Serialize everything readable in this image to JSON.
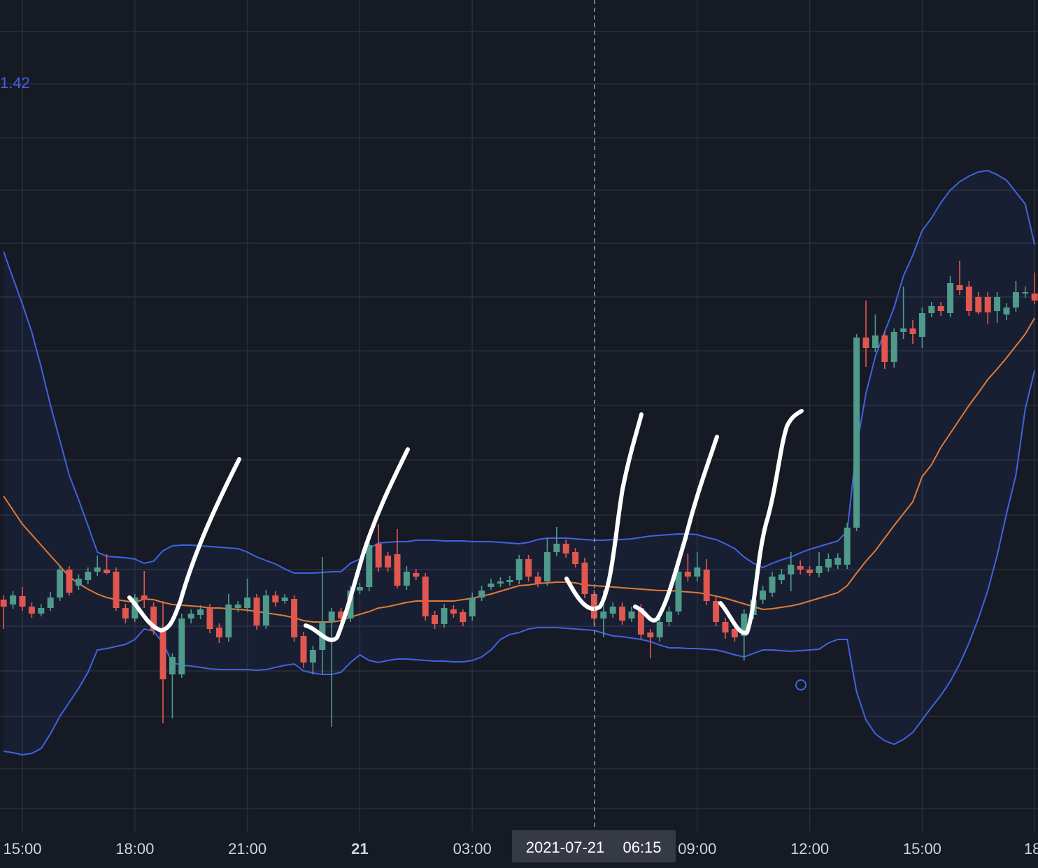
{
  "chart_data": {
    "type": "candlestick",
    "legend_value": "1.42",
    "crosshair": {
      "date": "2021-07-21",
      "time": "06:15"
    },
    "categories": [
      null,
      null,
      "15:00",
      null,
      null,
      null,
      null,
      null,
      null,
      null,
      null,
      null,
      null,
      null,
      "18:00",
      null,
      null,
      null,
      null,
      null,
      null,
      null,
      null,
      null,
      null,
      null,
      "21:00",
      null,
      null,
      null,
      null,
      null,
      null,
      null,
      null,
      null,
      null,
      null,
      "21",
      null,
      null,
      null,
      null,
      null,
      null,
      null,
      null,
      null,
      null,
      null,
      "03:00",
      null,
      null,
      null,
      null,
      null,
      null,
      null,
      null,
      null,
      null,
      null,
      null,
      null,
      null,
      null,
      null,
      null,
      null,
      null,
      null,
      null,
      null,
      null,
      "09:00",
      null,
      null,
      null,
      null,
      null,
      null,
      null,
      null,
      null,
      null,
      null,
      "12:00",
      null,
      null,
      null,
      null,
      null,
      null,
      null,
      null,
      null,
      null,
      null,
      "15:00",
      null,
      null,
      null,
      null,
      null,
      null,
      null,
      null,
      null,
      null,
      null,
      "18:"
    ],
    "ohlc": [
      [
        332,
        338,
        290,
        322
      ],
      [
        325,
        344,
        319,
        338
      ],
      [
        337,
        350,
        316,
        322
      ],
      [
        322,
        328,
        306,
        312
      ],
      [
        312,
        326,
        308,
        320
      ],
      [
        320,
        343,
        316,
        335
      ],
      [
        335,
        382,
        330,
        375
      ],
      [
        375,
        380,
        338,
        342
      ],
      [
        352,
        368,
        346,
        362
      ],
      [
        360,
        378,
        354,
        372
      ],
      [
        372,
        395,
        366,
        378
      ],
      [
        375,
        397,
        368,
        370
      ],
      [
        372,
        378,
        316,
        320
      ],
      [
        320,
        326,
        298,
        305
      ],
      [
        305,
        340,
        300,
        335
      ],
      [
        338,
        373,
        320,
        332
      ],
      [
        322,
        328,
        282,
        288
      ],
      [
        288,
        330,
        155,
        218
      ],
      [
        225,
        255,
        162,
        250
      ],
      [
        225,
        312,
        220,
        305
      ],
      [
        305,
        318,
        298,
        312
      ],
      [
        310,
        324,
        304,
        318
      ],
      [
        320,
        326,
        284,
        290
      ],
      [
        292,
        298,
        270,
        278
      ],
      [
        278,
        340,
        272,
        325
      ],
      [
        320,
        330,
        314,
        325
      ],
      [
        320,
        362,
        314,
        335
      ],
      [
        335,
        340,
        289,
        295
      ],
      [
        295,
        346,
        290,
        338
      ],
      [
        338,
        344,
        322,
        328
      ],
      [
        330,
        340,
        326,
        335
      ],
      [
        333,
        338,
        272,
        278
      ],
      [
        280,
        286,
        234,
        242
      ],
      [
        242,
        266,
        225,
        260
      ],
      [
        260,
        393,
        225,
        300
      ],
      [
        300,
        320,
        150,
        315
      ],
      [
        315,
        320,
        298,
        305
      ],
      [
        305,
        352,
        300,
        345
      ],
      [
        345,
        356,
        340,
        350
      ],
      [
        350,
        418,
        344,
        410
      ],
      [
        412,
        440,
        372,
        378
      ],
      [
        395,
        400,
        372,
        378
      ],
      [
        397,
        433,
        348,
        352
      ],
      [
        352,
        380,
        346,
        372
      ],
      [
        370,
        376,
        360,
        365
      ],
      [
        365,
        370,
        302,
        308
      ],
      [
        310,
        316,
        290,
        297
      ],
      [
        297,
        326,
        292,
        320
      ],
      [
        318,
        324,
        306,
        312
      ],
      [
        314,
        318,
        294,
        300
      ],
      [
        308,
        342,
        302,
        335
      ],
      [
        335,
        352,
        330,
        345
      ],
      [
        350,
        362,
        346,
        355
      ],
      [
        355,
        364,
        350,
        358
      ],
      [
        357,
        366,
        352,
        360
      ],
      [
        360,
        396,
        354,
        390
      ],
      [
        390,
        396,
        358,
        365
      ],
      [
        365,
        372,
        350,
        355
      ],
      [
        358,
        420,
        352,
        400
      ],
      [
        400,
        436,
        394,
        412
      ],
      [
        412,
        418,
        392,
        398
      ],
      [
        400,
        406,
        378,
        383
      ],
      [
        385,
        392,
        334,
        340
      ],
      [
        340,
        346,
        296,
        305
      ],
      [
        305,
        345,
        278,
        315
      ],
      [
        312,
        328,
        306,
        322
      ],
      [
        322,
        328,
        296,
        302
      ],
      [
        305,
        322,
        300,
        315
      ],
      [
        320,
        326,
        276,
        282
      ],
      [
        285,
        290,
        248,
        278
      ],
      [
        278,
        306,
        272,
        300
      ],
      [
        300,
        322,
        294,
        315
      ],
      [
        315,
        378,
        310,
        372
      ],
      [
        372,
        398,
        358,
        365
      ],
      [
        365,
        400,
        358,
        378
      ],
      [
        375,
        390,
        324,
        330
      ],
      [
        330,
        336,
        294,
        300
      ],
      [
        300,
        306,
        276,
        285
      ],
      [
        290,
        296,
        272,
        278
      ],
      [
        280,
        318,
        245,
        312
      ],
      [
        310,
        340,
        304,
        332
      ],
      [
        332,
        352,
        326,
        345
      ],
      [
        342,
        372,
        336,
        365
      ],
      [
        360,
        376,
        354,
        368
      ],
      [
        368,
        400,
        344,
        382
      ],
      [
        380,
        388,
        368,
        375
      ],
      [
        375,
        380,
        366,
        370
      ],
      [
        370,
        400,
        364,
        380
      ],
      [
        378,
        398,
        372,
        390
      ],
      [
        382,
        398,
        376,
        392
      ],
      [
        382,
        442,
        376,
        435
      ],
      [
        435,
        712,
        430,
        707
      ],
      [
        707,
        760,
        665,
        692
      ],
      [
        692,
        740,
        686,
        710
      ],
      [
        710,
        716,
        662,
        672
      ],
      [
        672,
        720,
        664,
        715
      ],
      [
        715,
        780,
        705,
        720
      ],
      [
        720,
        732,
        698,
        712
      ],
      [
        708,
        750,
        692,
        742
      ],
      [
        742,
        758,
        736,
        752
      ],
      [
        752,
        758,
        738,
        745
      ],
      [
        742,
        795,
        736,
        785
      ],
      [
        782,
        817,
        768,
        775
      ],
      [
        780,
        788,
        738,
        745
      ],
      [
        765,
        772,
        740,
        743
      ],
      [
        765,
        772,
        726,
        743
      ],
      [
        745,
        772,
        728,
        765
      ],
      [
        740,
        756,
        732,
        750
      ],
      [
        750,
        788,
        744,
        772
      ],
      [
        770,
        780,
        764,
        772
      ],
      [
        770,
        800,
        755,
        760
      ]
    ],
    "up_color": "#4f9a8a",
    "down_color": "#e0574f",
    "series": [
      {
        "color": "#3f63e0",
        "values": [
          830,
          792,
          755,
          715,
          665,
          610,
          560,
          510,
          475,
          438,
          400,
          394,
          393,
          392,
          390,
          384,
          387,
          402,
          409,
          410,
          410,
          409,
          408,
          407,
          406,
          405,
          400,
          393,
          388,
          383,
          376,
          370,
          370,
          370,
          371,
          372,
          372,
          384,
          390,
          405,
          413,
          414,
          415,
          415,
          417,
          417,
          417,
          416,
          416,
          416,
          415,
          415,
          415,
          414,
          413,
          412,
          414,
          418,
          420,
          420,
          420,
          419,
          418,
          417,
          417,
          418,
          418,
          419,
          421,
          423,
          424,
          425,
          426,
          426,
          425,
          421,
          418,
          412,
          405,
          393,
          384,
          378,
          384,
          389,
          393,
          399,
          404,
          408,
          412,
          416,
          430,
          550,
          627,
          680,
          715,
          750,
          795,
          825,
          860,
          878,
          900,
          918,
          930,
          938,
          944,
          946,
          940,
          932,
          915,
          898,
          840
        ]
      },
      {
        "color": "#e07b35",
        "values": [
          480,
          460,
          440,
          425,
          410,
          395,
          380,
          365,
          355,
          347,
          340,
          335,
          332,
          330,
          328,
          333,
          332,
          328,
          325,
          324,
          323,
          322,
          320,
          320,
          319,
          318,
          317,
          315,
          313,
          311,
          309,
          306,
          302,
          300,
          300,
          300,
          302,
          307,
          311,
          315,
          320,
          322,
          325,
          328,
          330,
          330,
          330,
          330,
          330,
          332,
          334,
          337,
          340,
          344,
          348,
          352,
          353,
          355,
          356,
          357,
          357,
          356,
          353,
          352,
          351,
          350,
          349,
          348,
          347,
          346,
          345,
          345,
          344,
          343,
          342,
          340,
          337,
          334,
          330,
          326,
          322,
          318,
          319,
          321,
          323,
          326,
          330,
          334,
          338,
          342,
          352,
          370,
          387,
          402,
          420,
          438,
          455,
          472,
          508,
          525,
          550,
          570,
          590,
          610,
          628,
          647,
          662,
          678,
          695,
          712,
          735
        ]
      },
      {
        "color": "#3f63e0",
        "values": [
          115,
          113,
          110,
          112,
          119,
          140,
          165,
          185,
          205,
          228,
          260,
          262,
          265,
          268,
          275,
          290,
          287,
          270,
          242,
          238,
          237,
          235,
          233,
          232,
          232,
          232,
          232,
          231,
          232,
          235,
          238,
          240,
          230,
          227,
          225,
          225,
          228,
          242,
          253,
          245,
          242,
          245,
          247,
          247,
          246,
          245,
          244,
          244,
          243,
          243,
          245,
          250,
          260,
          275,
          282,
          285,
          290,
          292,
          292,
          292,
          291,
          290,
          289,
          288,
          284,
          280,
          279,
          277,
          275,
          272,
          267,
          263,
          263,
          262,
          262,
          261,
          260,
          257,
          253,
          250,
          255,
          260,
          260,
          259,
          258,
          259,
          260,
          261,
          270,
          275,
          275,
          200,
          160,
          140,
          130,
          125,
          132,
          142,
          160,
          178,
          195,
          215,
          240,
          270,
          305,
          345,
          395,
          455,
          510,
          605,
          660
        ]
      }
    ],
    "ylim": [
      0,
      1190
    ]
  }
}
